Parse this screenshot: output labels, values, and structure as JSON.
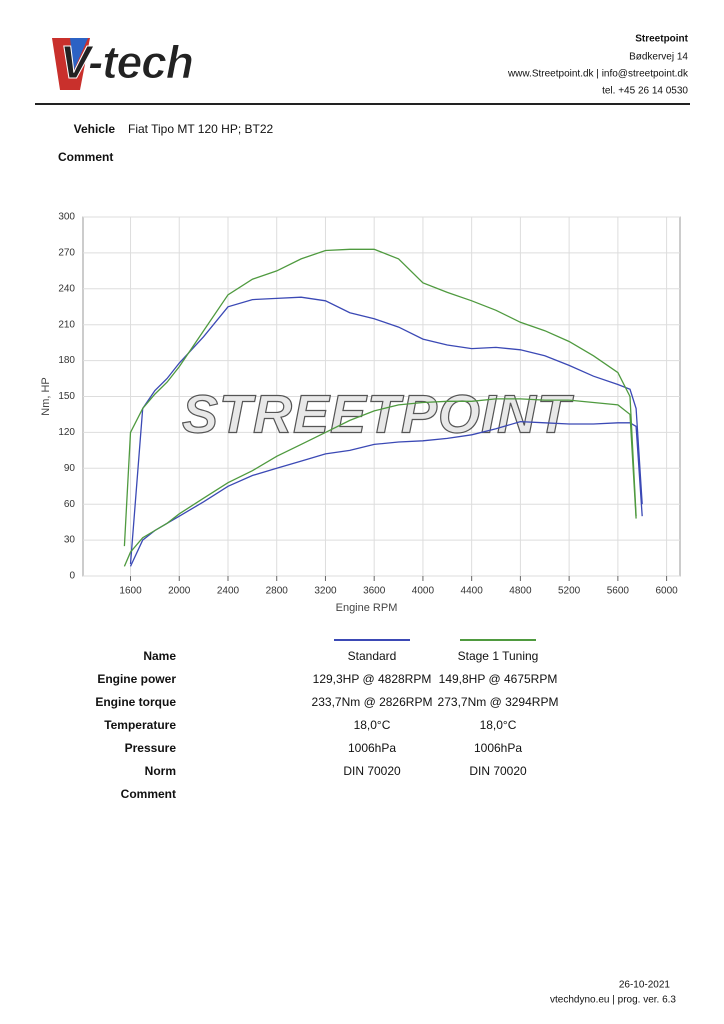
{
  "header": {
    "logo": "V-tech",
    "company": "Streetpoint",
    "address": "Bødkervej 14",
    "web": "www.Streetpoint.dk | info@streetpoint.dk",
    "phone": "tel. +45 26 14 0530"
  },
  "vehicle": {
    "label": "Vehicle",
    "value": "Fiat Tipo MT 120 HP; BT22"
  },
  "comment_label": "Comment",
  "chart_data": {
    "type": "line",
    "watermark": "STREETPOINT",
    "x_label": "Engine RPM",
    "y_label": "Nm, HP",
    "x": [
      1550,
      1600,
      1700,
      1800,
      1900,
      2000,
      2200,
      2400,
      2600,
      2800,
      3000,
      3200,
      3400,
      3600,
      3800,
      4000,
      4200,
      4400,
      4600,
      4800,
      5000,
      5200,
      5400,
      5600,
      5700,
      5750,
      5800
    ],
    "series": [
      {
        "name": "Standard",
        "color": "#3b49b5",
        "power": [
          null,
          8,
          30,
          38,
          44,
          50,
          62,
          75,
          84,
          90,
          96,
          102,
          105,
          110,
          112,
          113,
          115,
          118,
          123,
          129,
          128,
          127,
          127,
          128,
          128,
          125,
          50
        ],
        "torque": [
          null,
          10,
          140,
          155,
          165,
          178,
          200,
          225,
          231,
          232,
          233,
          230,
          220,
          215,
          208,
          198,
          193,
          190,
          191,
          189,
          184,
          176,
          167,
          160,
          156,
          140,
          60
        ]
      },
      {
        "name": "Stage 1 Tuning",
        "color": "#4f9a3f",
        "power": [
          8,
          20,
          32,
          38,
          44,
          52,
          65,
          78,
          88,
          100,
          110,
          120,
          130,
          138,
          143,
          145,
          146,
          146,
          148,
          148,
          147,
          147,
          145,
          143,
          135,
          48,
          null
        ],
        "torque": [
          25,
          120,
          140,
          152,
          162,
          175,
          205,
          235,
          248,
          255,
          265,
          272,
          273,
          273,
          265,
          245,
          237,
          230,
          222,
          212,
          205,
          196,
          184,
          170,
          150,
          50,
          null
        ]
      }
    ],
    "xlim": [
      1210,
      6110
    ],
    "ylim": [
      0,
      300
    ],
    "xticks": [
      1600,
      2000,
      2400,
      2800,
      3200,
      3600,
      4000,
      4400,
      4800,
      5200,
      5600,
      6000
    ],
    "yticks": [
      0,
      30,
      60,
      90,
      120,
      150,
      180,
      210,
      240,
      270,
      300
    ],
    "grid": true
  },
  "table": {
    "header": "Name",
    "rows": [
      [
        "Engine power",
        "129,3HP @ 4828RPM",
        "149,8HP @ 4675RPM"
      ],
      [
        "Engine torque",
        "233,7Nm @ 2826RPM",
        "273,7Nm @ 3294RPM"
      ],
      [
        "Temperature",
        "18,0°C",
        "18,0°C"
      ],
      [
        "Pressure",
        "1006hPa",
        "1006hPa"
      ],
      [
        "Norm",
        "DIN 70020",
        "DIN 70020"
      ],
      [
        "Comment"
      ]
    ]
  },
  "footer": {
    "date": "26-10-2021",
    "program": "vtechdyno.eu | prog. ver. 6.3"
  }
}
